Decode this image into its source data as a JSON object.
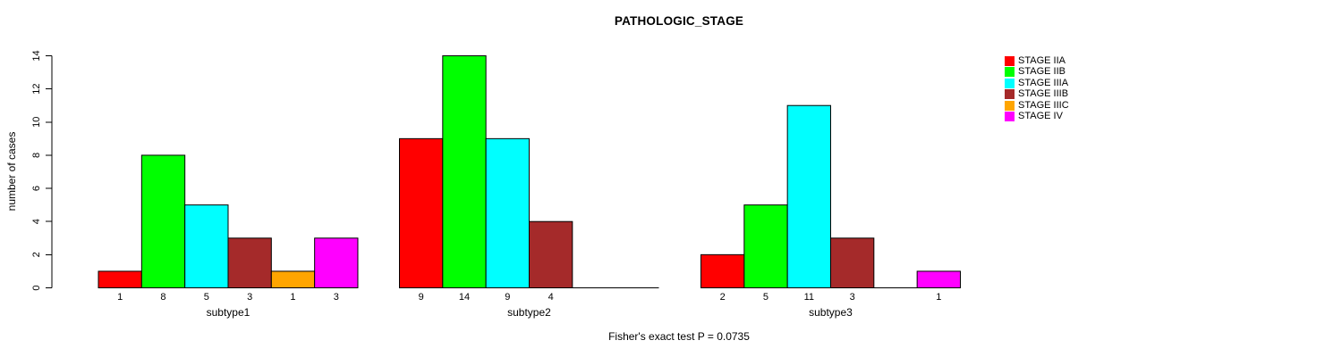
{
  "chart_data": {
    "type": "bar",
    "title": "PATHOLOGIC_STAGE",
    "ylabel": "number of cases",
    "xlabel": "",
    "ylim": [
      0,
      14
    ],
    "yticks": [
      0,
      2,
      4,
      6,
      8,
      10,
      12,
      14
    ],
    "grid": false,
    "legend_position": "top-right",
    "bar_value_labels": true,
    "categories": [
      "subtype1",
      "subtype2",
      "subtype3"
    ],
    "series": [
      {
        "name": "STAGE IIA",
        "color": "#FF0000",
        "values": [
          1,
          9,
          2
        ]
      },
      {
        "name": "STAGE IIB",
        "color": "#00FF00",
        "values": [
          8,
          14,
          5
        ]
      },
      {
        "name": "STAGE IIIA",
        "color": "#00FFFF",
        "values": [
          5,
          9,
          11
        ]
      },
      {
        "name": "STAGE IIIB",
        "color": "#A52A2A",
        "values": [
          3,
          4,
          3
        ]
      },
      {
        "name": "STAGE IIIC",
        "color": "#FFA500",
        "values": [
          1,
          0,
          0
        ]
      },
      {
        "name": "STAGE IV",
        "color": "#FF00FF",
        "values": [
          3,
          0,
          1
        ]
      }
    ],
    "annotation": "Fisher's exact test P = 0.0735",
    "axis_color": "#000000",
    "background_color": "#FFFFFF"
  }
}
